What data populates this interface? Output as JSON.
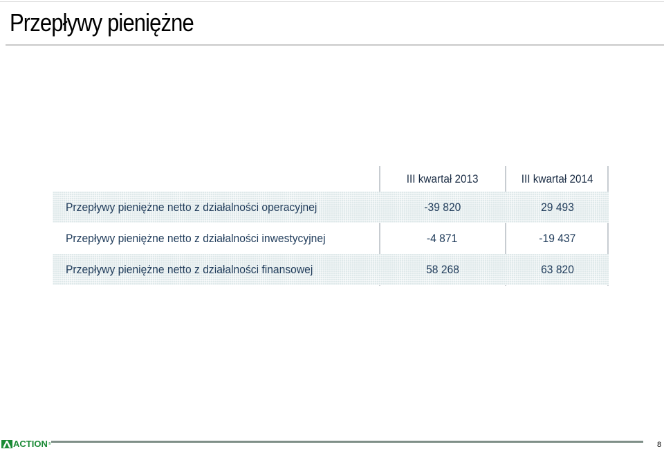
{
  "slide": {
    "title": "Przepływy pieniężne"
  },
  "table": {
    "headers": [
      "",
      "III kwartał 2013",
      "III kwartał 2014"
    ],
    "rows": [
      {
        "label": "Przepływy pieniężne netto z działalności operacyjnej",
        "q3_2013": "-39 820",
        "q3_2014": "29 493"
      },
      {
        "label": "Przepływy pieniężne netto z działalności inwestycyjnej",
        "q3_2013": "-4 871",
        "q3_2014": "-19 437"
      },
      {
        "label": "Przepływy pieniężne netto z działalności finansowej",
        "q3_2013": "58 268",
        "q3_2014": "63 820"
      }
    ]
  },
  "footer": {
    "logo_text": "ACTION",
    "logo_mark": "®",
    "page_number": "8"
  },
  "colors": {
    "row_shade": "#dfe9ea",
    "text": "#1f3b5a",
    "logo_green": "#1a8a35"
  }
}
